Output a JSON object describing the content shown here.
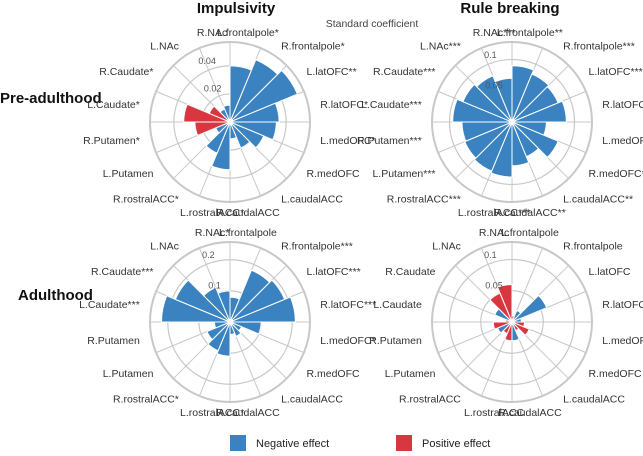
{
  "figure": {
    "column_titles": [
      "Impulsivity",
      "Rule breaking"
    ],
    "row_titles": [
      "Pre-adulthood",
      "Adulthood"
    ],
    "axis_subtitle": "Standard coefficient"
  },
  "legend": [
    {
      "label": "Negative effect",
      "color": "#3a82c0"
    },
    {
      "label": "Positive effect",
      "color": "#d9373f"
    }
  ],
  "colors": {
    "negative": "#3a82c0",
    "positive": "#d9373f",
    "grid": "#c8c8c8"
  },
  "chart_data": [
    {
      "type": "bar",
      "polar": true,
      "panel": "Impulsivity / Pre-adulthood",
      "ticks": [
        0.02,
        0.04
      ],
      "rmax": 0.057,
      "categories": [
        "L.frontalpole",
        "R.frontalpole",
        "L.latOFC",
        "R.latOFC",
        "L.medOFC",
        "R.medOFC",
        "L.caudalACC",
        "R.caudalACC",
        "L.rostralACC",
        "R.rostralACC",
        "L.Putamen",
        "R.Putamen",
        "L.Caudate",
        "R.Caudate",
        "L.NAc",
        "R.NAc"
      ],
      "labels": [
        "L.frontalpole*",
        "R.frontalpole*",
        "L.latOFC**",
        "R.latOFC*",
        "L.medOFC*",
        "R.medOFC",
        "L.caudalACC",
        "R.caudalACC",
        "L.rostralACC*",
        "R.rostralACC*",
        "L.Putamen",
        "R.Putamen*",
        "L.Caudate*",
        "R.Caudate*",
        "L.NAc",
        "R.NAc"
      ],
      "values": [
        0.04,
        0.048,
        0.052,
        0.035,
        0.033,
        0.026,
        0.02,
        0.012,
        0.034,
        0.024,
        0.011,
        0.025,
        0.033,
        0.016,
        0.01,
        0.012
      ],
      "effect": [
        "neg",
        "neg",
        "neg",
        "neg",
        "neg",
        "neg",
        "neg",
        "neg",
        "neg",
        "neg",
        "neg",
        "pos",
        "pos",
        "pos",
        "neg",
        "neg"
      ]
    },
    {
      "type": "bar",
      "polar": true,
      "panel": "Rule breaking / Pre-adulthood",
      "ticks": [
        0.05,
        0.1
      ],
      "rmax": 0.128,
      "categories": [
        "L.frontalpole",
        "R.frontalpole",
        "L.latOFC",
        "R.latOFC",
        "L.medOFC",
        "R.medOFC",
        "L.caudalACC",
        "R.caudalACC",
        "L.rostralACC",
        "R.rostralACC",
        "L.Putamen",
        "R.Putamen",
        "L.Caudate",
        "R.Caudate",
        "L.NAc",
        "R.NAc"
      ],
      "labels": [
        "L.frontalpole**",
        "R.frontalpole***",
        "L.latOFC***",
        "R.latOFC***",
        "L.medOFC*",
        "R.medOFC***",
        "L.caudalACC**",
        "R.caudalACC**",
        "L.rostralACC***",
        "R.rostralACC***",
        "L.Putamen***",
        "R.Putamen***",
        "L.Caudate***",
        "R.Caudate***",
        "L.NAc***",
        "R.NAc***"
      ],
      "values": [
        0.09,
        0.083,
        0.08,
        0.087,
        0.055,
        0.08,
        0.06,
        0.07,
        0.088,
        0.085,
        0.082,
        0.08,
        0.095,
        0.085,
        0.08,
        0.07
      ],
      "effect": [
        "neg",
        "neg",
        "neg",
        "neg",
        "neg",
        "neg",
        "neg",
        "neg",
        "neg",
        "neg",
        "neg",
        "neg",
        "neg",
        "neg",
        "neg",
        "neg"
      ]
    },
    {
      "type": "bar",
      "polar": true,
      "panel": "Impulsivity / Adulthood",
      "ticks": [
        0.1,
        0.2
      ],
      "rmax": 0.257,
      "categories": [
        "L.frontalpole",
        "R.frontalpole",
        "L.latOFC",
        "R.latOFC",
        "L.medOFC",
        "R.medOFC",
        "L.caudalACC",
        "R.caudalACC",
        "L.rostralACC",
        "R.rostralACC",
        "L.Putamen",
        "R.Putamen",
        "L.Caudate",
        "R.Caudate",
        "L.NAc",
        "R.NAc"
      ],
      "labels": [
        "L.frontalpole",
        "R.frontalpole***",
        "L.latOFC***",
        "R.latOFC***",
        "L.medOFC*",
        "R.medOFC",
        "L.caudalACC",
        "R.caudalACC",
        "L.rostralACC*",
        "R.rostralACC*",
        "L.Putamen",
        "R.Putamen",
        "L.Caudate***",
        "R.Caudate***",
        "L.NAc",
        "R.NAc*"
      ],
      "values": [
        0.08,
        0.18,
        0.19,
        0.21,
        0.1,
        0.04,
        0.05,
        0.04,
        0.11,
        0.1,
        0.08,
        0.05,
        0.22,
        0.19,
        0.12,
        0.1
      ],
      "effect": [
        "neg",
        "neg",
        "neg",
        "neg",
        "neg",
        "neg",
        "neg",
        "neg",
        "neg",
        "neg",
        "neg",
        "neg",
        "neg",
        "neg",
        "neg",
        "neg"
      ]
    },
    {
      "type": "bar",
      "polar": true,
      "panel": "Rule breaking / Adulthood",
      "ticks": [
        0.05,
        0.1
      ],
      "rmax": 0.128,
      "categories": [
        "L.frontalpole",
        "R.frontalpole",
        "L.latOFC",
        "R.latOFC",
        "L.medOFC",
        "R.medOFC",
        "L.caudalACC",
        "R.caudalACC",
        "L.rostralACC",
        "R.rostralACC",
        "L.Putamen",
        "R.Putamen",
        "L.Caudate",
        "R.Caudate",
        "L.NAc",
        "R.NAc"
      ],
      "labels": [
        "L.frontalpole",
        "R.frontalpole",
        "L.latOFC",
        "R.latOFC",
        "L.medOFC",
        "R.medOFC",
        "L.caudalACC",
        "R.caudalACC",
        "L.rostralACC",
        "R.rostralACC",
        "L.Putamen",
        "R.Putamen",
        "L.Caudate",
        "R.Caudate",
        "L.NAc",
        "R.NAc"
      ],
      "values": [
        0.01,
        0.02,
        0.06,
        0.015,
        0.02,
        0.03,
        0.015,
        0.03,
        0.03,
        0.02,
        0.025,
        0.03,
        0.01,
        0.03,
        0.05,
        0.06
      ],
      "effect": [
        "pos",
        "neg",
        "neg",
        "neg",
        "pos",
        "pos",
        "pos",
        "neg",
        "pos",
        "pos",
        "neg",
        "pos",
        "pos",
        "neg",
        "pos",
        "pos"
      ]
    }
  ]
}
